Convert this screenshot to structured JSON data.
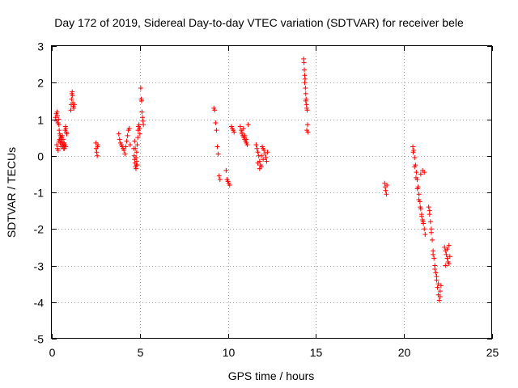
{
  "chart_data": {
    "type": "scatter",
    "title": "Day 172 of 2019, Sidereal Day-to-day VTEC variation (SDTVAR) for receiver bele",
    "xlabel": "GPS time / hours",
    "ylabel": "SDTVAR / TECUs",
    "xlim": [
      0,
      25
    ],
    "ylim": [
      -5,
      3
    ],
    "xticks": [
      0,
      5,
      10,
      15,
      20,
      25
    ],
    "yticks": [
      -5,
      -4,
      -3,
      -2,
      -1,
      0,
      1,
      2,
      3
    ],
    "grid": true,
    "marker": "+",
    "color": "#ff0000",
    "series": [
      {
        "name": "SDTVAR",
        "x": [
          0.2,
          0.25,
          0.28,
          0.3,
          0.32,
          0.35,
          0.38,
          0.4,
          0.42,
          0.45,
          0.48,
          0.5,
          0.52,
          0.55,
          0.58,
          0.6,
          0.62,
          0.65,
          0.68,
          0.7,
          0.72,
          0.75,
          0.78,
          0.8,
          0.82,
          0.85,
          0.28,
          0.32,
          0.36,
          0.4,
          0.44,
          0.48,
          0.52,
          0.56,
          0.6,
          0.64,
          0.68,
          0.72,
          0.76,
          0.8,
          1.08,
          1.1,
          1.12,
          1.14,
          1.16,
          1.18,
          1.2,
          1.22,
          1.25,
          1.28,
          2.5,
          2.52,
          2.55,
          2.58,
          2.6,
          2.62,
          3.8,
          3.85,
          3.9,
          3.95,
          4.0,
          4.05,
          4.1,
          4.15,
          4.2,
          4.25,
          4.3,
          4.35,
          4.4,
          4.45,
          4.65,
          4.68,
          4.7,
          4.72,
          4.75,
          4.78,
          4.8,
          4.82,
          4.85,
          4.88,
          4.9,
          4.92,
          4.95,
          4.98,
          5.0,
          4.7,
          4.74,
          4.78,
          4.82,
          4.86,
          5.05,
          5.08,
          5.1,
          5.12,
          5.15,
          5.18,
          5.2,
          9.2,
          9.25,
          9.3,
          9.35,
          9.4,
          9.45,
          9.5,
          9.55,
          9.9,
          9.95,
          10.0,
          10.05,
          10.1,
          10.2,
          10.25,
          10.3,
          10.35,
          10.7,
          10.75,
          10.8,
          10.85,
          10.9,
          10.95,
          11.0,
          11.05,
          11.1,
          11.15,
          10.8,
          10.88,
          10.96,
          11.04,
          11.6,
          11.65,
          11.7,
          11.75,
          11.8,
          11.85,
          11.9,
          11.95,
          12.0,
          12.05,
          12.1,
          12.15,
          12.2,
          12.25,
          11.7,
          11.8,
          11.9,
          12.0,
          14.3,
          14.32,
          14.34,
          14.36,
          14.38,
          14.4,
          14.42,
          14.44,
          14.46,
          14.48,
          14.5,
          14.52,
          14.54,
          14.36,
          14.42,
          14.48,
          18.9,
          18.93,
          18.96,
          19.0,
          19.03,
          20.5,
          20.55,
          20.6,
          20.65,
          20.7,
          20.75,
          20.8,
          20.85,
          20.9,
          20.95,
          21.0,
          21.05,
          21.1,
          21.15,
          21.2,
          20.52,
          20.6,
          20.68,
          20.76,
          20.84,
          20.92,
          21.0,
          21.08,
          20.95,
          21.05,
          21.15,
          21.4,
          21.45,
          21.5,
          21.55,
          21.6,
          21.65,
          21.7,
          21.75,
          21.8,
          21.85,
          21.9,
          21.95,
          22.0,
          22.05,
          22.1,
          21.45,
          21.55,
          21.65,
          21.75,
          21.85,
          21.95,
          22.05,
          22.3,
          22.35,
          22.4,
          22.45,
          22.5,
          22.55,
          22.6,
          22.35,
          22.45,
          22.55
        ],
        "y": [
          1.05,
          1.15,
          0.95,
          1.2,
          1.1,
          0.9,
          1.0,
          0.85,
          0.7,
          0.6,
          0.55,
          0.45,
          0.5,
          0.4,
          0.35,
          0.3,
          0.25,
          0.3,
          0.2,
          0.35,
          0.25,
          0.7,
          0.8,
          0.75,
          0.65,
          0.6,
          0.3,
          0.2,
          0.15,
          0.4,
          0.45,
          0.35,
          0.25,
          0.5,
          0.55,
          0.45,
          0.25,
          0.2,
          0.3,
          0.25,
          1.25,
          1.4,
          1.55,
          1.7,
          1.75,
          1.65,
          1.45,
          1.35,
          1.3,
          1.4,
          0.35,
          0.2,
          0.1,
          0.0,
          0.25,
          0.3,
          0.6,
          0.45,
          0.35,
          0.3,
          0.25,
          0.2,
          0.15,
          0.05,
          0.25,
          0.4,
          0.55,
          0.7,
          0.75,
          0.3,
          0.2,
          0.0,
          -0.1,
          -0.2,
          -0.3,
          -0.35,
          -0.25,
          0.1,
          0.3,
          0.5,
          0.7,
          0.8,
          0.85,
          0.75,
          0.6,
          0.4,
          0.2,
          -0.05,
          -0.15,
          -0.25,
          1.85,
          1.55,
          1.5,
          1.2,
          1.05,
          0.95,
          0.85,
          1.3,
          1.25,
          0.9,
          0.7,
          0.25,
          0.05,
          -0.55,
          -0.65,
          -0.4,
          -0.65,
          -0.7,
          -0.75,
          -0.8,
          0.8,
          0.75,
          0.7,
          0.65,
          0.8,
          0.7,
          0.6,
          0.55,
          0.5,
          0.45,
          0.4,
          0.35,
          0.3,
          0.85,
          0.65,
          0.75,
          0.55,
          0.45,
          0.3,
          0.2,
          0.1,
          0.0,
          -0.15,
          -0.25,
          -0.3,
          0.25,
          0.2,
          0.15,
          0.05,
          -0.05,
          -0.15,
          0.1,
          -0.2,
          -0.35,
          0.0,
          -0.1,
          2.65,
          2.55,
          2.35,
          2.2,
          2.1,
          1.85,
          1.7,
          1.55,
          1.4,
          1.3,
          1.25,
          0.85,
          0.65,
          2.0,
          1.5,
          0.7,
          -0.75,
          -0.85,
          -0.95,
          -1.05,
          -0.8,
          0.25,
          0.15,
          -0.05,
          -0.25,
          -0.45,
          -0.65,
          -0.85,
          -1.05,
          -1.25,
          -1.45,
          -1.65,
          -1.75,
          -1.85,
          -2.0,
          -2.15,
          0.1,
          -0.3,
          -0.6,
          -0.9,
          -1.2,
          -1.4,
          -1.6,
          -1.8,
          -0.5,
          -0.4,
          -0.45,
          -1.4,
          -1.6,
          -1.8,
          -2.0,
          -2.3,
          -2.6,
          -2.8,
          -3.0,
          -3.2,
          -3.4,
          -3.6,
          -3.8,
          -3.95,
          -3.7,
          -3.55,
          -1.5,
          -2.1,
          -2.7,
          -3.1,
          -3.3,
          -3.5,
          -3.85,
          -2.5,
          -2.6,
          -2.7,
          -2.8,
          -2.9,
          -2.95,
          -2.75,
          -3.0,
          -2.55,
          -2.45
        ]
      }
    ]
  }
}
